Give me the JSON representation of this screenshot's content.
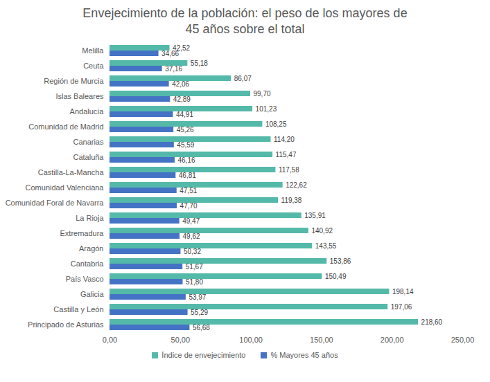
{
  "chart_data": {
    "type": "bar",
    "orientation": "horizontal",
    "title": "Envejecimiento de la población: el peso de los mayores de 45 años sobre el total",
    "categories": [
      "Melilla",
      "Ceuta",
      "Región de Murcia",
      "Islas Baleares",
      "Andalucía",
      "Comunidad de Madrid",
      "Canarias",
      "Cataluña",
      "Castilla-La-Mancha",
      "Comunidad Valenciana",
      "Comunidad Foral de Navarra",
      "La Rioja",
      "Extremadura",
      "Aragón",
      "Cantabria",
      "País Vasco",
      "Galicia",
      "Castilla y León",
      "Principado de Asturias"
    ],
    "series": [
      {
        "name": "Índice de envejecimiento",
        "color": "#54b9a9",
        "values": [
          42.52,
          55.18,
          86.07,
          99.7,
          101.23,
          108.25,
          114.2,
          115.47,
          117.58,
          122.62,
          119.38,
          135.91,
          140.92,
          143.55,
          153.86,
          150.49,
          198.14,
          197.06,
          218.6
        ],
        "value_labels": [
          "42,52",
          "55,18",
          "86,07",
          "99,70",
          "101,23",
          "108,25",
          "114,20",
          "115,47",
          "117,58",
          "122,62",
          "119,38",
          "135,91",
          "140,92",
          "143,55",
          "153,86",
          "150,49",
          "198,14",
          "197,06",
          "218,60"
        ]
      },
      {
        "name": "% Mayores 45 años",
        "color": "#4472c4",
        "values": [
          34.66,
          37.16,
          42.06,
          42.89,
          44.91,
          45.26,
          45.59,
          46.16,
          46.81,
          47.51,
          47.7,
          49.47,
          49.62,
          50.32,
          51.67,
          51.8,
          53.97,
          55.29,
          56.68
        ],
        "value_labels": [
          "34,66",
          "37,16",
          "42,06",
          "42,89",
          "44,91",
          "45,26",
          "45,59",
          "46,16",
          "46,81",
          "47,51",
          "47,70",
          "49,47",
          "49,62",
          "50,32",
          "51,67",
          "51,80",
          "53,97",
          "55,29",
          "56,68"
        ]
      }
    ],
    "xlim": [
      0,
      250
    ],
    "xticks": [
      {
        "value": 0,
        "label": "0,00"
      },
      {
        "value": 50,
        "label": "50,00"
      },
      {
        "value": 100,
        "label": "100,00"
      },
      {
        "value": 150,
        "label": "150,00"
      },
      {
        "value": 200,
        "label": "200,00"
      },
      {
        "value": 250,
        "label": "250,00"
      }
    ],
    "grid": false,
    "data_labels": true,
    "legend": "bottom"
  }
}
